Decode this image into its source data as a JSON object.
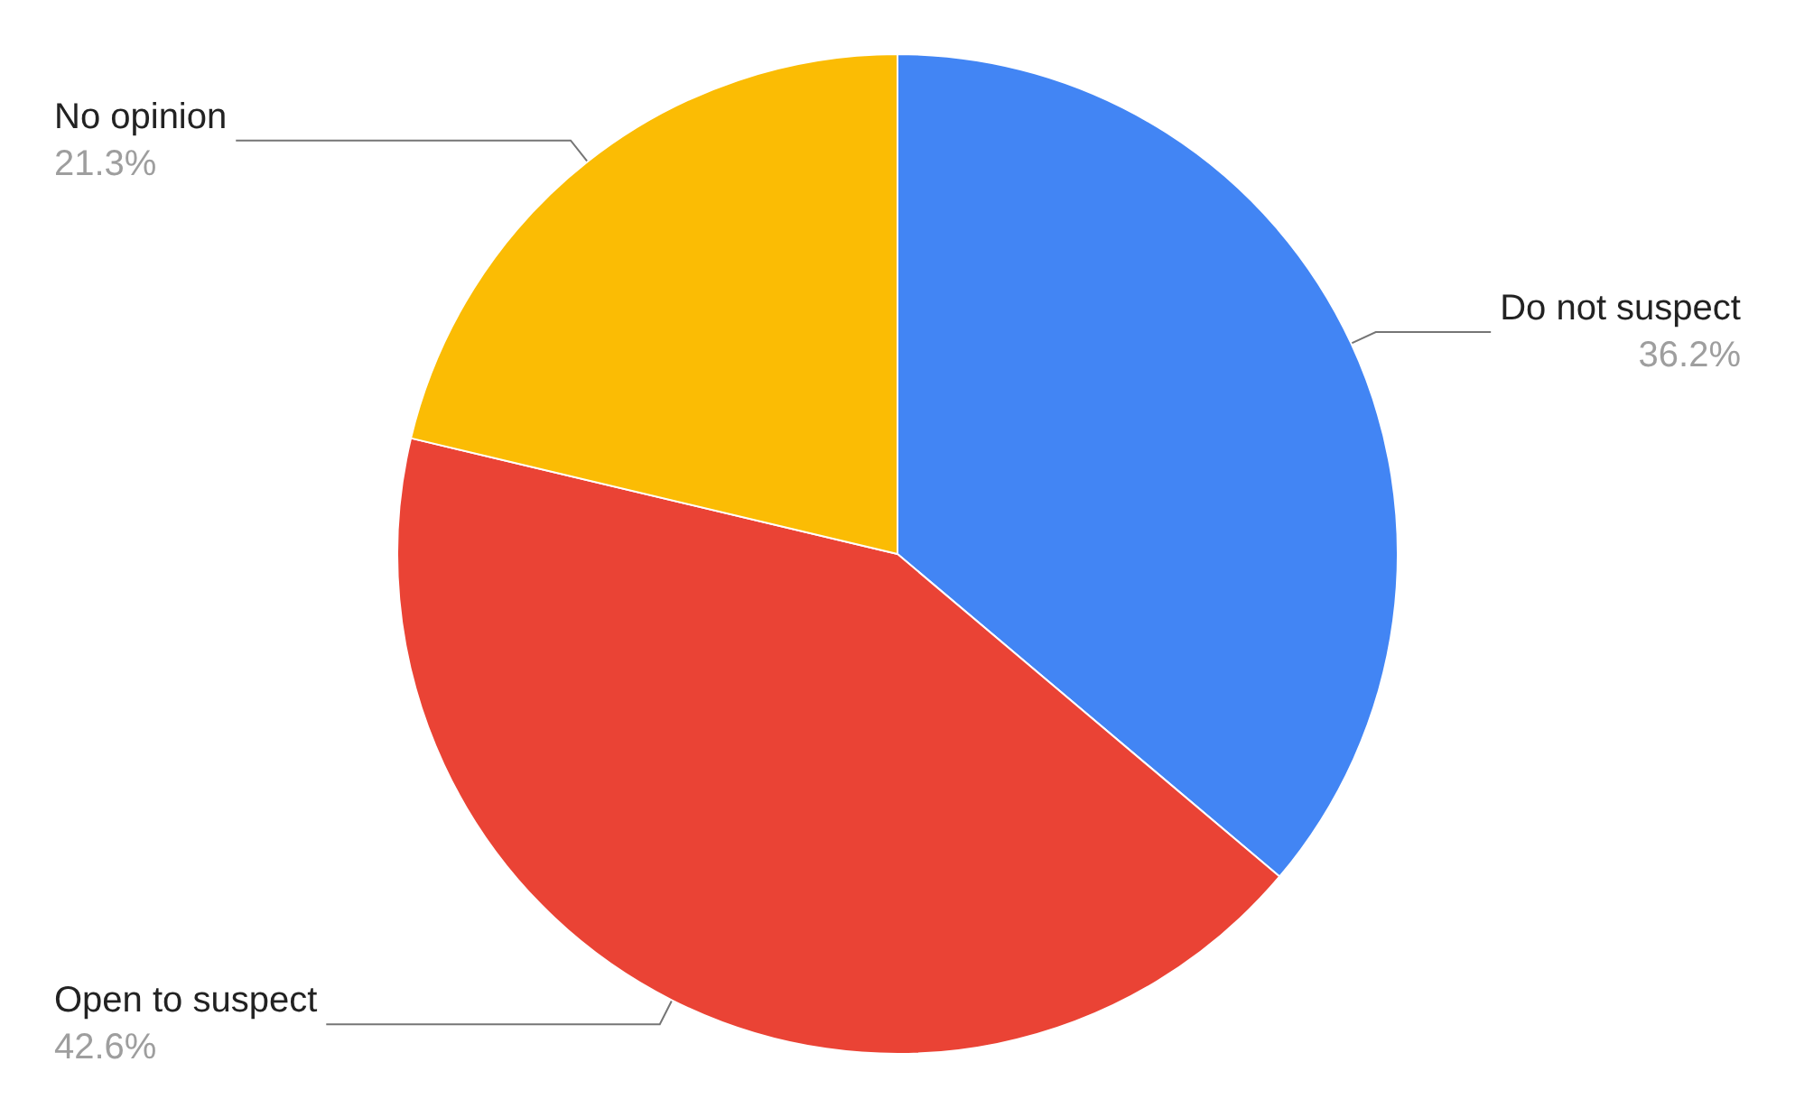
{
  "chart_data": {
    "type": "pie",
    "categories": [
      "Do not suspect",
      "Open to suspect",
      "No opinion"
    ],
    "values": [
      36.2,
      42.6,
      21.3
    ],
    "value_labels": [
      "36.2%",
      "42.6%",
      "21.3%"
    ],
    "colors": [
      "#4285f4",
      "#ea4335",
      "#fbbc04"
    ]
  }
}
